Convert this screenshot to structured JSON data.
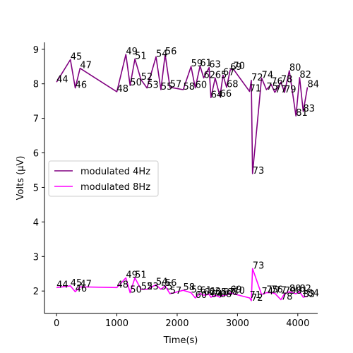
{
  "chart_data": {
    "type": "line",
    "xlabel": "Time(s)",
    "ylabel": "Volts (μV)",
    "xlim": [
      -200,
      4330
    ],
    "ylim": [
      1.35,
      9.2
    ],
    "xticks": [
      0,
      1000,
      2000,
      3000,
      4000
    ],
    "yticks": [
      2,
      3,
      4,
      5,
      6,
      7,
      8,
      9
    ],
    "legend_position": "center-left",
    "grid": false,
    "series": [
      {
        "name": "modulated 4Hz",
        "color": "#800080",
        "points": [
          {
            "label": "44",
            "x": 0,
            "y": 8.05
          },
          {
            "label": "45",
            "x": 230,
            "y": 8.7
          },
          {
            "label": "46",
            "x": 310,
            "y": 7.88
          },
          {
            "label": "47",
            "x": 390,
            "y": 8.45
          },
          {
            "label": "48",
            "x": 1000,
            "y": 7.77
          },
          {
            "label": "49",
            "x": 1150,
            "y": 8.85
          },
          {
            "label": "50",
            "x": 1220,
            "y": 7.95
          },
          {
            "label": "51",
            "x": 1300,
            "y": 8.72
          },
          {
            "label": "52",
            "x": 1400,
            "y": 8.12
          },
          {
            "label": "53",
            "x": 1500,
            "y": 7.88
          },
          {
            "label": "54",
            "x": 1650,
            "y": 8.78
          },
          {
            "label": "55",
            "x": 1730,
            "y": 7.83
          },
          {
            "label": "56",
            "x": 1800,
            "y": 8.85
          },
          {
            "label": "57",
            "x": 1880,
            "y": 7.9
          },
          {
            "label": "58",
            "x": 2100,
            "y": 7.83
          },
          {
            "label": "59",
            "x": 2230,
            "y": 8.5
          },
          {
            "label": "60",
            "x": 2300,
            "y": 7.88
          },
          {
            "label": "61",
            "x": 2380,
            "y": 8.52
          },
          {
            "label": "62",
            "x": 2440,
            "y": 8.17
          },
          {
            "label": "63",
            "x": 2530,
            "y": 8.47
          },
          {
            "label": "64",
            "x": 2560,
            "y": 7.6
          },
          {
            "label": "65",
            "x": 2630,
            "y": 8.17
          },
          {
            "label": "66",
            "x": 2710,
            "y": 7.63
          },
          {
            "label": "67",
            "x": 2760,
            "y": 8.25
          },
          {
            "label": "68",
            "x": 2820,
            "y": 7.9
          },
          {
            "label": "69",
            "x": 2880,
            "y": 8.4
          },
          {
            "label": "70",
            "x": 2930,
            "y": 8.43
          },
          {
            "label": "71",
            "x": 3200,
            "y": 7.78
          },
          {
            "label": "72",
            "x": 3230,
            "y": 8.1
          },
          {
            "label": "73",
            "x": 3250,
            "y": 5.4
          },
          {
            "label": "74",
            "x": 3400,
            "y": 8.17
          },
          {
            "label": "75",
            "x": 3480,
            "y": 7.83
          },
          {
            "label": "76",
            "x": 3560,
            "y": 7.98
          },
          {
            "label": "77",
            "x": 3620,
            "y": 7.75
          },
          {
            "label": "78",
            "x": 3720,
            "y": 8.05
          },
          {
            "label": "79",
            "x": 3780,
            "y": 7.75
          },
          {
            "label": "80",
            "x": 3860,
            "y": 8.38
          },
          {
            "label": "81",
            "x": 3970,
            "y": 7.07
          },
          {
            "label": "82",
            "x": 4030,
            "y": 8.18
          },
          {
            "label": "83",
            "x": 4090,
            "y": 7.2
          },
          {
            "label": "84",
            "x": 4160,
            "y": 7.9
          }
        ]
      },
      {
        "name": "modulated 8Hz",
        "color": "#ff00ff",
        "points": [
          {
            "label": "44",
            "x": 0,
            "y": 2.1
          },
          {
            "label": "45",
            "x": 230,
            "y": 2.15
          },
          {
            "label": "46",
            "x": 310,
            "y": 1.98
          },
          {
            "label": "47",
            "x": 390,
            "y": 2.12
          },
          {
            "label": "48",
            "x": 1000,
            "y": 2.1
          },
          {
            "label": "49",
            "x": 1150,
            "y": 2.38
          },
          {
            "label": "50",
            "x": 1220,
            "y": 1.95
          },
          {
            "label": "51",
            "x": 1300,
            "y": 2.38
          },
          {
            "label": "52",
            "x": 1400,
            "y": 2.05
          },
          {
            "label": "53",
            "x": 1500,
            "y": 2.05
          },
          {
            "label": "54",
            "x": 1650,
            "y": 2.18
          },
          {
            "label": "55",
            "x": 1730,
            "y": 2.05
          },
          {
            "label": "56",
            "x": 1800,
            "y": 2.15
          },
          {
            "label": "57",
            "x": 1880,
            "y": 1.92
          },
          {
            "label": "58",
            "x": 2100,
            "y": 2.02
          },
          {
            "label": "59",
            "x": 2230,
            "y": 1.95
          },
          {
            "label": "60",
            "x": 2300,
            "y": 1.8
          },
          {
            "label": "61",
            "x": 2380,
            "y": 1.93
          },
          {
            "label": "62",
            "x": 2440,
            "y": 1.88
          },
          {
            "label": "63",
            "x": 2530,
            "y": 1.9
          },
          {
            "label": "64",
            "x": 2560,
            "y": 1.82
          },
          {
            "label": "65",
            "x": 2630,
            "y": 1.88
          },
          {
            "label": "66",
            "x": 2710,
            "y": 1.82
          },
          {
            "label": "67",
            "x": 2760,
            "y": 1.88
          },
          {
            "label": "68",
            "x": 2820,
            "y": 1.88
          },
          {
            "label": "69",
            "x": 2880,
            "y": 1.95
          },
          {
            "label": "70",
            "x": 2930,
            "y": 1.92
          },
          {
            "label": "71",
            "x": 3200,
            "y": 1.8
          },
          {
            "label": "72",
            "x": 3230,
            "y": 1.72
          },
          {
            "label": "73",
            "x": 3250,
            "y": 2.65
          },
          {
            "label": "74",
            "x": 3400,
            "y": 1.9
          },
          {
            "label": "75",
            "x": 3480,
            "y": 1.95
          },
          {
            "label": "76",
            "x": 3560,
            "y": 1.95
          },
          {
            "label": "77",
            "x": 3620,
            "y": 1.93
          },
          {
            "label": "78",
            "x": 3720,
            "y": 1.75
          },
          {
            "label": "79",
            "x": 3780,
            "y": 1.92
          },
          {
            "label": "80",
            "x": 3860,
            "y": 1.98
          },
          {
            "label": "81",
            "x": 3970,
            "y": 1.92
          },
          {
            "label": "82",
            "x": 4030,
            "y": 1.98
          },
          {
            "label": "83",
            "x": 4090,
            "y": 1.82
          },
          {
            "label": "84",
            "x": 4160,
            "y": 1.85
          }
        ]
      }
    ]
  }
}
